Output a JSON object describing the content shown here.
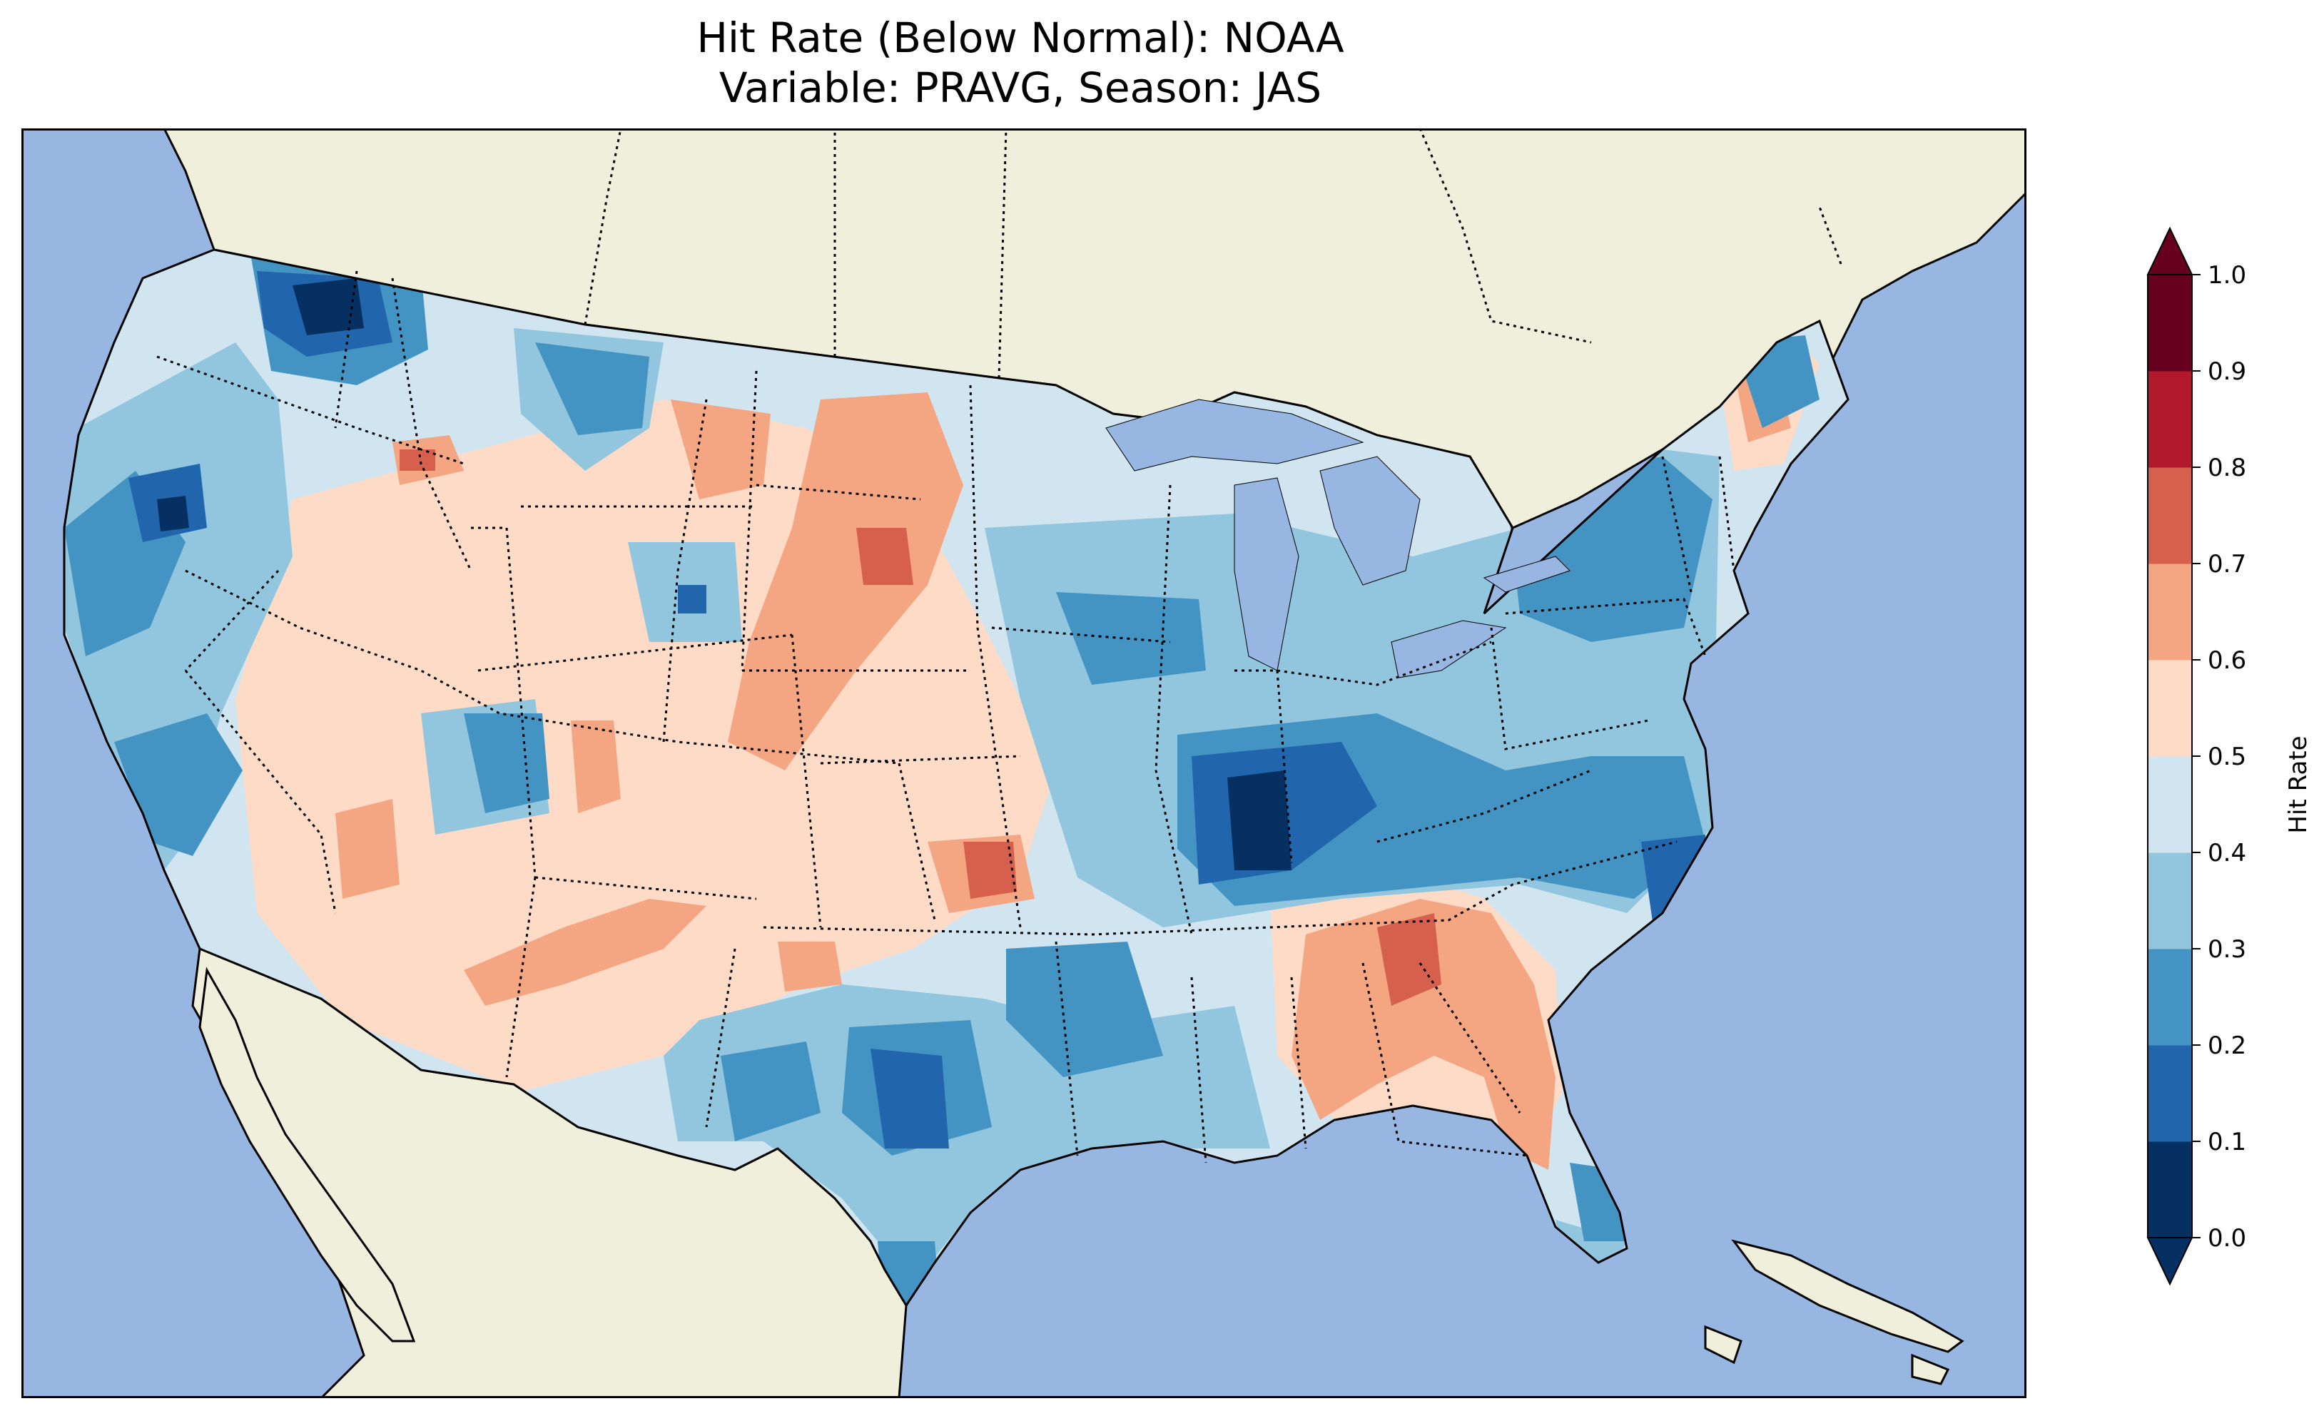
{
  "title": {
    "line1": "Hit Rate (Below Normal): NOAA",
    "line2": "Variable: PRAVG, Season: JAS"
  },
  "colors": {
    "ocean": "#97b6e1",
    "land": "#efefdb",
    "border": "#000000"
  },
  "colorbar": {
    "label": "Hit Rate",
    "ticks": [
      "0.0",
      "0.1",
      "0.2",
      "0.3",
      "0.4",
      "0.5",
      "0.6",
      "0.7",
      "0.8",
      "0.9",
      "1.0"
    ],
    "colors": [
      "#053061",
      "#2166ac",
      "#4393c3",
      "#92c5de",
      "#d1e5f0",
      "#fddbc7",
      "#f4a582",
      "#d6604d",
      "#b2182b",
      "#67001f"
    ],
    "extend": "both"
  },
  "map": {
    "region": "Contiguous United States",
    "regional_values": [
      {
        "region": "Pacific Northwest (north Idaho / Washington)",
        "value": 0.15
      },
      {
        "region": "Oregon coast",
        "value": 0.25
      },
      {
        "region": "California / Nevada",
        "value": 0.35
      },
      {
        "region": "Great Basin / Southwest",
        "value": 0.55
      },
      {
        "region": "Wyoming / northern Plains",
        "value": 0.62
      },
      {
        "region": "Nebraska / Kansas",
        "value": 0.65
      },
      {
        "region": "Texas / Oklahoma",
        "value": 0.25
      },
      {
        "region": "Ohio Valley (Kentucky / southern Illinois)",
        "value": 0.08
      },
      {
        "region": "Northeast",
        "value": 0.3
      },
      {
        "region": "North Carolina coast",
        "value": 0.2
      },
      {
        "region": "Georgia / Alabama",
        "value": 0.68
      },
      {
        "region": "Florida peninsula",
        "value": 0.3
      }
    ]
  }
}
